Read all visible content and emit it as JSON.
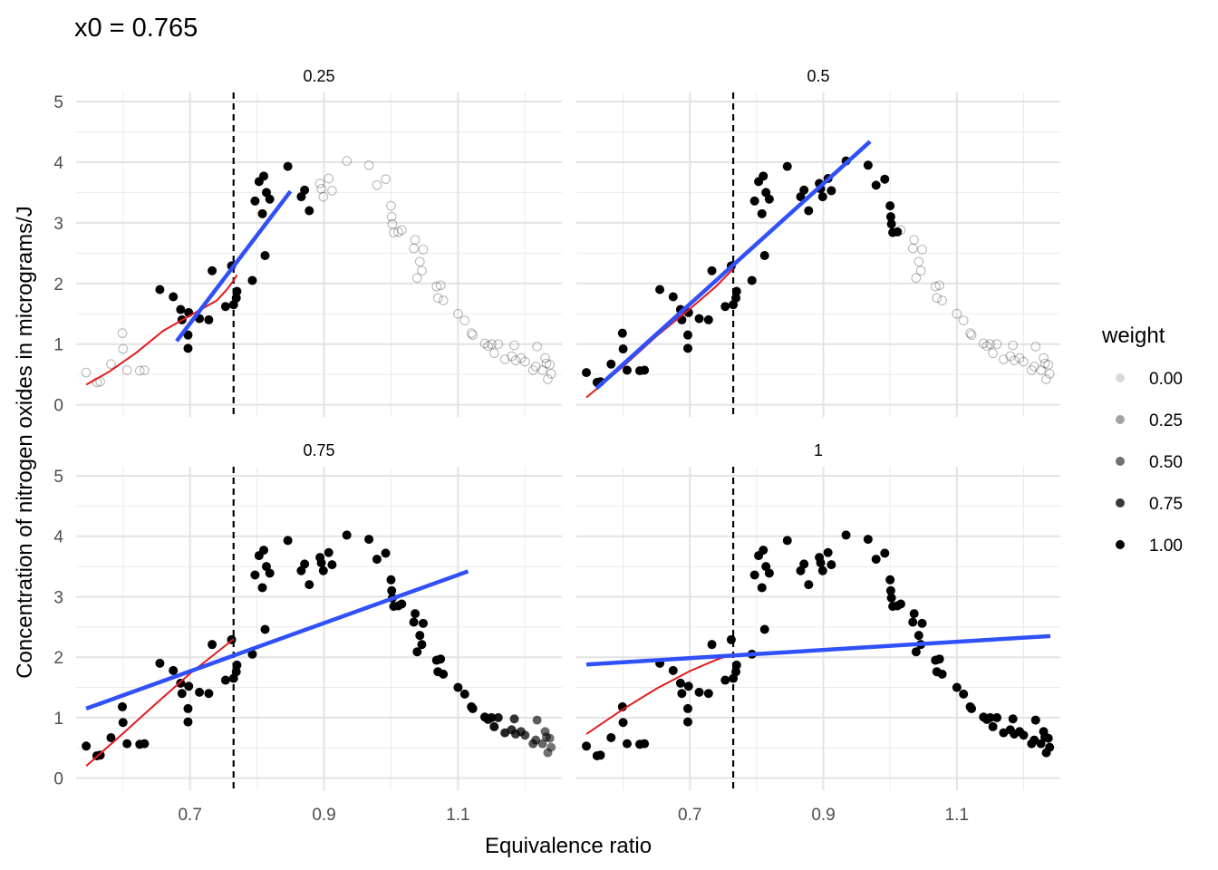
{
  "title": "x0 =  0.765",
  "xlabel": "Equivalence ratio",
  "ylabel": "Concentration of nitrogen oxides in micrograms/J",
  "legend": {
    "title": "weight",
    "entries": [
      {
        "label": "0.00",
        "alpha": 0.15
      },
      {
        "label": "0.25",
        "alpha": 0.36
      },
      {
        "label": "0.50",
        "alpha": 0.56
      },
      {
        "label": "0.75",
        "alpha": 0.78
      },
      {
        "label": "1.00",
        "alpha": 1.0
      }
    ]
  },
  "chart_data": {
    "type": "scatter",
    "x0": 0.765,
    "xlim": [
      0.53,
      1.255
    ],
    "ylim": [
      -0.2,
      5.15
    ],
    "xticks": [
      0.7,
      0.9,
      1.1
    ],
    "xtick_labels": [
      "0.7",
      "0.9",
      "1.1"
    ],
    "yticks": [
      0,
      1,
      2,
      3,
      4,
      5
    ],
    "ytick_labels": [
      "0",
      "1",
      "2",
      "3",
      "4",
      "5"
    ],
    "grid": true,
    "legend_position": "right",
    "colors": {
      "points": "#000000",
      "linear_fit": "#3050f8",
      "local_fit": "#e41a1c",
      "x0_line": "#000000"
    },
    "points": [
      [
        0.545,
        0.53
      ],
      [
        0.561,
        0.37
      ],
      [
        0.566,
        0.38
      ],
      [
        0.582,
        0.67
      ],
      [
        0.599,
        1.18
      ],
      [
        0.6,
        0.92
      ],
      [
        0.606,
        0.57
      ],
      [
        0.625,
        0.56
      ],
      [
        0.632,
        0.57
      ],
      [
        0.655,
        1.9
      ],
      [
        0.675,
        1.78
      ],
      [
        0.686,
        1.57
      ],
      [
        0.688,
        1.4
      ],
      [
        0.697,
        1.15
      ],
      [
        0.697,
        0.93
      ],
      [
        0.698,
        1.52
      ],
      [
        0.714,
        1.42
      ],
      [
        0.728,
        1.4
      ],
      [
        0.733,
        2.21
      ],
      [
        0.753,
        1.62
      ],
      [
        0.762,
        2.29
      ],
      [
        0.765,
        1.65
      ],
      [
        0.769,
        1.76
      ],
      [
        0.77,
        1.87
      ],
      [
        0.793,
        2.05
      ],
      [
        0.797,
        3.36
      ],
      [
        0.803,
        3.68
      ],
      [
        0.808,
        3.15
      ],
      [
        0.81,
        3.77
      ],
      [
        0.812,
        2.46
      ],
      [
        0.814,
        3.5
      ],
      [
        0.819,
        3.39
      ],
      [
        0.846,
        3.93
      ],
      [
        0.866,
        3.43
      ],
      [
        0.871,
        3.54
      ],
      [
        0.878,
        3.2
      ],
      [
        0.894,
        3.65
      ],
      [
        0.896,
        3.56
      ],
      [
        0.899,
        3.43
      ],
      [
        0.907,
        3.73
      ],
      [
        0.912,
        3.53
      ],
      [
        0.934,
        4.02
      ],
      [
        0.967,
        3.95
      ],
      [
        0.979,
        3.62
      ],
      [
        0.992,
        3.72
      ],
      [
        1.0,
        3.28
      ],
      [
        1.001,
        3.1
      ],
      [
        1.002,
        2.98
      ],
      [
        1.004,
        2.84
      ],
      [
        1.011,
        2.85
      ],
      [
        1.016,
        2.88
      ],
      [
        1.034,
        2.58
      ],
      [
        1.036,
        2.72
      ],
      [
        1.039,
        2.09
      ],
      [
        1.043,
        2.36
      ],
      [
        1.046,
        2.21
      ],
      [
        1.048,
        2.56
      ],
      [
        1.068,
        1.95
      ],
      [
        1.07,
        1.76
      ],
      [
        1.074,
        1.97
      ],
      [
        1.078,
        1.72
      ],
      [
        1.1,
        1.5
      ],
      [
        1.11,
        1.39
      ],
      [
        1.12,
        1.18
      ],
      [
        1.122,
        1.15
      ],
      [
        1.14,
        1.01
      ],
      [
        1.145,
        0.97
      ],
      [
        1.15,
        1.0
      ],
      [
        1.154,
        0.85
      ],
      [
        1.16,
        1.0
      ],
      [
        1.17,
        0.75
      ],
      [
        1.18,
        0.8
      ],
      [
        1.184,
        0.98
      ],
      [
        1.186,
        0.73
      ],
      [
        1.194,
        0.77
      ],
      [
        1.2,
        0.71
      ],
      [
        1.212,
        0.57
      ],
      [
        1.216,
        0.63
      ],
      [
        1.218,
        0.96
      ],
      [
        1.226,
        0.57
      ],
      [
        1.23,
        0.77
      ],
      [
        1.232,
        0.68
      ],
      [
        1.234,
        0.42
      ],
      [
        1.237,
        0.66
      ],
      [
        1.239,
        0.51
      ]
    ],
    "panels": [
      {
        "label": "0.25",
        "bandwidth": 0.25,
        "weight_alpha": {
          "near": 1.0,
          "far": 0.15
        },
        "linear_fit": {
          "x": [
            0.68,
            0.85
          ],
          "y": [
            1.05,
            3.52
          ]
        },
        "local_fit": {
          "x": [
            0.545,
            0.58,
            0.62,
            0.66,
            0.7,
            0.74,
            0.755,
            0.765,
            0.77
          ],
          "y": [
            0.33,
            0.55,
            0.86,
            1.22,
            1.47,
            1.72,
            1.9,
            2.05,
            2.14
          ]
        }
      },
      {
        "label": "0.5",
        "bandwidth": 0.5,
        "weight_alpha": {
          "near": 1.0,
          "far": 0.15
        },
        "linear_fit": {
          "x": [
            0.56,
            0.97
          ],
          "y": [
            0.27,
            4.34
          ]
        },
        "local_fit": {
          "x": [
            0.545,
            0.6,
            0.65,
            0.7,
            0.74,
            0.765
          ],
          "y": [
            0.12,
            0.63,
            1.13,
            1.58,
            1.96,
            2.24
          ]
        }
      },
      {
        "label": "0.75",
        "bandwidth": 0.75,
        "weight_alpha": {
          "near": 1.0,
          "far": 0.3
        },
        "linear_fit": {
          "x": [
            0.545,
            1.115
          ],
          "y": [
            1.15,
            3.42
          ]
        },
        "local_fit": {
          "x": [
            0.545,
            0.6,
            0.65,
            0.7,
            0.74,
            0.765
          ],
          "y": [
            0.2,
            0.74,
            1.24,
            1.73,
            2.08,
            2.3
          ]
        }
      },
      {
        "label": "1",
        "bandwidth": 1.0,
        "weight_alpha": {
          "near": 1.0,
          "far": 0.65
        },
        "linear_fit": {
          "x": [
            0.545,
            1.24
          ],
          "y": [
            1.88,
            2.35
          ]
        },
        "local_fit": {
          "x": [
            0.545,
            0.6,
            0.65,
            0.7,
            0.74,
            0.765
          ],
          "y": [
            0.73,
            1.14,
            1.48,
            1.77,
            1.96,
            2.05
          ]
        }
      }
    ]
  }
}
